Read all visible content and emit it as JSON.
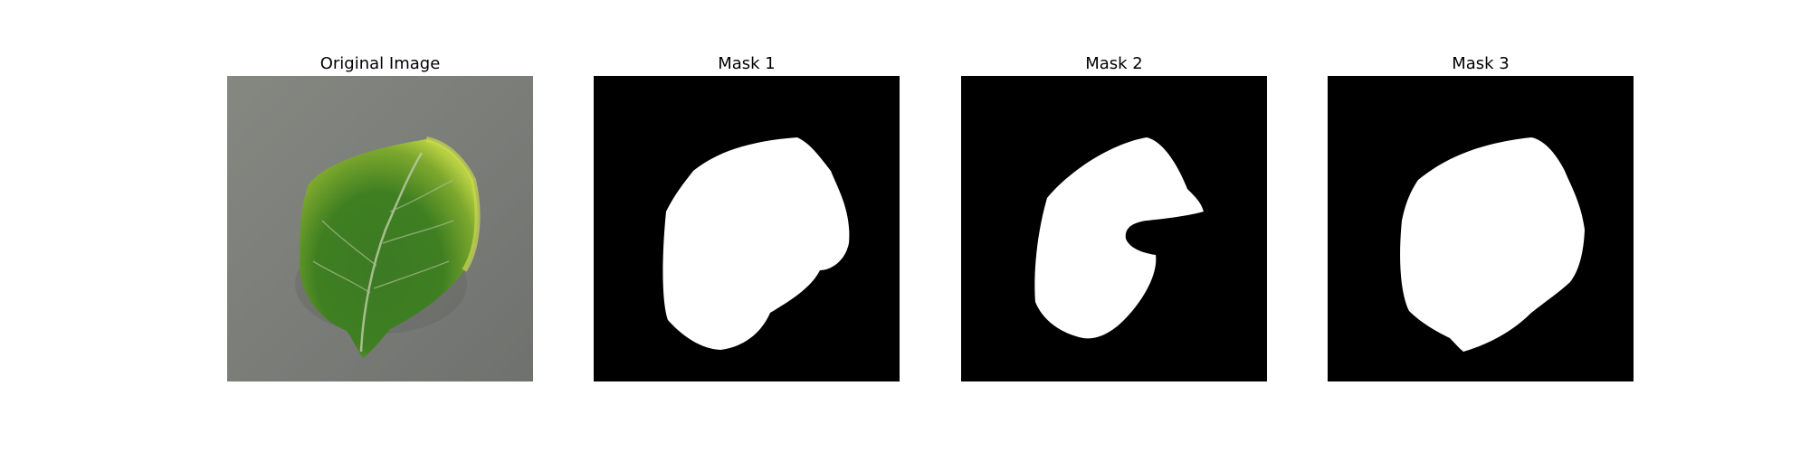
{
  "panels": [
    {
      "title": "Original Image",
      "kind": "photo",
      "subject": "green leaf on gray surface"
    },
    {
      "title": "Mask 1",
      "kind": "mask"
    },
    {
      "title": "Mask 2",
      "kind": "mask"
    },
    {
      "title": "Mask 3",
      "kind": "mask"
    }
  ],
  "colors": {
    "photo_background": "#7d7f7b",
    "leaf_dark": "#2f6a1e",
    "leaf_light": "#a9c83a",
    "mask_background": "#000000",
    "mask_foreground": "#ffffff"
  }
}
